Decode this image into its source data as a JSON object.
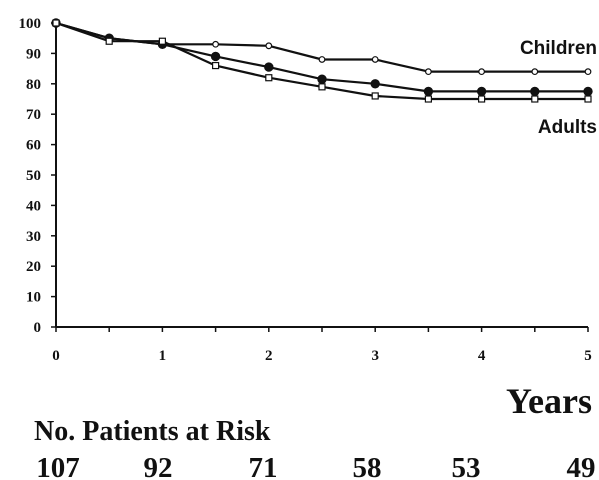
{
  "chart_data": {
    "type": "line",
    "title": "",
    "xlabel": "Years",
    "ylabel": "",
    "xlim": [
      0,
      5
    ],
    "ylim": [
      0,
      100
    ],
    "x_ticks": [
      "0",
      "1",
      "2",
      "3",
      "4",
      "5"
    ],
    "y_ticks": [
      "0",
      "10",
      "20",
      "30",
      "40",
      "50",
      "60",
      "70",
      "80",
      "90",
      "100"
    ],
    "grid": false,
    "series": [
      {
        "name": "Children",
        "marker": "open-circle-small",
        "x": [
          0,
          0.5,
          1,
          1.5,
          2,
          2.5,
          3,
          3.5,
          4,
          4.5,
          5
        ],
        "values": [
          100,
          95,
          93,
          93,
          92.5,
          88,
          88,
          84,
          84,
          84,
          84
        ]
      },
      {
        "name": "",
        "marker": "filled-circle",
        "x": [
          0,
          0.5,
          1,
          1.5,
          2,
          2.5,
          3,
          3.5,
          4,
          4.5,
          5
        ],
        "values": [
          100,
          95,
          93,
          89,
          85.5,
          81.5,
          80,
          77.5,
          77.5,
          77.5,
          77.5
        ]
      },
      {
        "name": "Adults",
        "marker": "open-square",
        "x": [
          0,
          0.5,
          1,
          1.5,
          2,
          2.5,
          3,
          3.5,
          4,
          4.5,
          5
        ],
        "values": [
          100,
          94,
          94,
          86,
          82,
          79,
          76,
          75,
          75,
          75,
          75
        ]
      }
    ],
    "risk_table": {
      "title": "No. Patients at Risk",
      "x": [
        0,
        1,
        2,
        3,
        4,
        5
      ],
      "values": [
        "107",
        "92",
        "71",
        "58",
        "53",
        "49"
      ]
    }
  }
}
